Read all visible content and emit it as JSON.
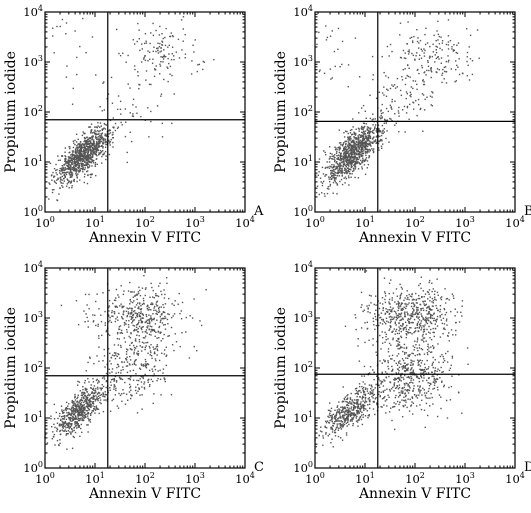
{
  "colors": {
    "axis": "#000000",
    "points": "#555555",
    "background": "#ffffff"
  },
  "chart_data": [
    {
      "type": "scatter",
      "panel_label": "A",
      "xlabel": "Annexin V FITC",
      "ylabel": "Propidium iodide",
      "x_scale": "log",
      "y_scale": "log",
      "xlim": [
        1,
        10000
      ],
      "ylim": [
        1,
        10000
      ],
      "x_ticks": [
        "10",
        "10",
        "10",
        "10",
        "10"
      ],
      "x_tick_exponents": [
        "0",
        "1",
        "2",
        "3",
        "4"
      ],
      "y_ticks": [
        "10",
        "10",
        "10",
        "10",
        "10"
      ],
      "y_tick_exponents": [
        "0",
        "1",
        "2",
        "3",
        "4"
      ],
      "quadrant_gate": {
        "x": 18,
        "y": 70
      },
      "populations": [
        {
          "name": "",
          "n": 950,
          "cx": 6,
          "cy": 14,
          "sx": 0.27,
          "sy": 0.27,
          "rho": 0.72
        },
        {
          "name": "",
          "n": 55,
          "cx": 60,
          "cy": 110,
          "sx": 0.45,
          "sy": 0.35,
          "rho": 0.2
        },
        {
          "name": "",
          "n": 130,
          "cx": 220,
          "cy": 1500,
          "sx": 0.4,
          "sy": 0.28,
          "rho": 0.0
        },
        {
          "name": "",
          "n": 20,
          "cx": 4,
          "cy": 2000,
          "sx": 0.3,
          "sy": 0.4,
          "rho": 0.0
        }
      ]
    },
    {
      "type": "scatter",
      "panel_label": "B",
      "xlabel": "Annexin V FITC",
      "ylabel": "Propidium iodide",
      "x_scale": "log",
      "y_scale": "log",
      "xlim": [
        1,
        10000
      ],
      "ylim": [
        1,
        10000
      ],
      "x_ticks": [
        "10",
        "10",
        "10",
        "10",
        "10"
      ],
      "x_tick_exponents": [
        "0",
        "1",
        "2",
        "3",
        "4"
      ],
      "y_ticks": [
        "10",
        "10",
        "10",
        "10",
        "10"
      ],
      "y_tick_exponents": [
        "0",
        "1",
        "2",
        "3",
        "4"
      ],
      "quadrant_gate": {
        "x": 18,
        "y": 65
      },
      "populations": [
        {
          "name": "",
          "n": 950,
          "cx": 6,
          "cy": 16,
          "sx": 0.28,
          "sy": 0.3,
          "rho": 0.72
        },
        {
          "name": "",
          "n": 110,
          "cx": 50,
          "cy": 150,
          "sx": 0.42,
          "sy": 0.4,
          "rho": 0.3
        },
        {
          "name": "",
          "n": 170,
          "cx": 200,
          "cy": 1300,
          "sx": 0.42,
          "sy": 0.32,
          "rho": 0.0
        },
        {
          "name": "",
          "n": 25,
          "cx": 3,
          "cy": 2000,
          "sx": 0.3,
          "sy": 0.4,
          "rho": 0.0
        }
      ]
    },
    {
      "type": "scatter",
      "panel_label": "C",
      "xlabel": "Annexin V FITC",
      "ylabel": "Propidium iodide",
      "x_scale": "log",
      "y_scale": "log",
      "xlim": [
        1,
        10000
      ],
      "ylim": [
        1,
        10000
      ],
      "x_ticks": [
        "10",
        "10",
        "10",
        "10",
        "10"
      ],
      "x_tick_exponents": [
        "0",
        "1",
        "2",
        "3",
        "4"
      ],
      "y_ticks": [
        "10",
        "10",
        "10",
        "10",
        "10"
      ],
      "y_tick_exponents": [
        "0",
        "1",
        "2",
        "3",
        "4"
      ],
      "quadrant_gate": {
        "x": 18,
        "y": 70
      },
      "populations": [
        {
          "name": "",
          "n": 600,
          "cx": 5,
          "cy": 14,
          "sx": 0.26,
          "sy": 0.28,
          "rho": 0.72
        },
        {
          "name": "",
          "n": 280,
          "cx": 60,
          "cy": 90,
          "sx": 0.42,
          "sy": 0.38,
          "rho": 0.2
        },
        {
          "name": "",
          "n": 420,
          "cx": 70,
          "cy": 1200,
          "sx": 0.45,
          "sy": 0.3,
          "rho": 0.0
        }
      ]
    },
    {
      "type": "scatter",
      "panel_label": "D",
      "xlabel": "Annexin V FITC",
      "ylabel": "Propidium iodide",
      "x_scale": "log",
      "y_scale": "log",
      "xlim": [
        1,
        10000
      ],
      "ylim": [
        1,
        10000
      ],
      "x_ticks": [
        "10",
        "10",
        "10",
        "10",
        "10"
      ],
      "x_tick_exponents": [
        "0",
        "1",
        "2",
        "3",
        "4"
      ],
      "y_ticks": [
        "10",
        "10",
        "10",
        "10",
        "10"
      ],
      "y_tick_exponents": [
        "0",
        "1",
        "2",
        "3",
        "4"
      ],
      "quadrant_gate": {
        "x": 18,
        "y": 75
      },
      "populations": [
        {
          "name": "",
          "n": 450,
          "cx": 5,
          "cy": 14,
          "sx": 0.26,
          "sy": 0.26,
          "rho": 0.72
        },
        {
          "name": "",
          "n": 500,
          "cx": 80,
          "cy": 70,
          "sx": 0.42,
          "sy": 0.38,
          "rho": 0.15
        },
        {
          "name": "",
          "n": 550,
          "cx": 80,
          "cy": 1100,
          "sx": 0.42,
          "sy": 0.3,
          "rho": 0.0
        }
      ]
    }
  ]
}
